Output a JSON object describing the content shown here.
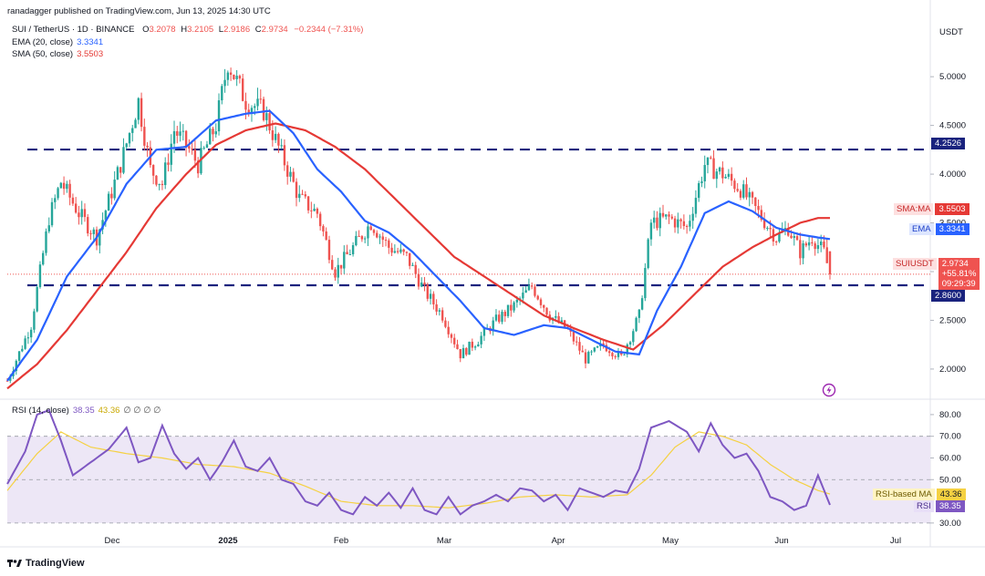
{
  "header": {
    "publisher": "ranadagger published on TradingView.com, Jun 13, 2025 14:30 UTC"
  },
  "legend": {
    "symbol": "SUI / TetherUS · 1D · BINANCE",
    "open_label": "O",
    "open": "3.2078",
    "high_label": "H",
    "high": "3.2105",
    "low_label": "L",
    "low": "2.9186",
    "close_label": "C",
    "close": "2.9734",
    "change": "−0.2344 (−7.31%)",
    "ema_label": "EMA (20, close)",
    "ema_value": "3.3341",
    "sma_label": "SMA (50, close)",
    "sma_value": "3.5503",
    "rsi_label": "RSI (14, close)",
    "rsi_value": "38.35",
    "rsi_ma_value": "43.36",
    "rsi_extra": "∅ ∅ ∅ ∅"
  },
  "currency": "USDT",
  "price_badges": {
    "level_high": "4.2526",
    "sma": {
      "label": "SMA:MA",
      "value": "3.5503"
    },
    "ema": {
      "label": "EMA",
      "value": "3.3341"
    },
    "last": {
      "label": "SUIUSDT",
      "value": "2.9734",
      "change": "+55.81%",
      "countdown": "09:29:39"
    },
    "level_low": "2.8600"
  },
  "rsi_badges": {
    "ma": {
      "label": "RSI-based MA",
      "value": "43.36"
    },
    "rsi": {
      "label": "RSI",
      "value": "38.35"
    }
  },
  "footer": {
    "brand": "TradingView"
  },
  "colors": {
    "up": "#26a69a",
    "down": "#ef5350",
    "ema": "#2962ff",
    "sma": "#e53935",
    "level": "#1a237e",
    "rsi": "#7e57c2",
    "rsi_ma": "#f5d142",
    "rsi_band": "#ede7f6"
  },
  "chart_data": [
    {
      "type": "candlestick",
      "title": "SUI / TetherUS · 1D · BINANCE",
      "y_axis_unit": "USDT",
      "yticks": [
        "2.0000",
        "2.5000",
        "3.0000",
        "3.5000",
        "4.0000",
        "4.5000",
        "5.0000"
      ],
      "ylim": [
        1.7,
        5.6
      ],
      "x_tick_labels": [
        "Dec",
        "2025",
        "Feb",
        "Mar",
        "Apr",
        "May",
        "Jun",
        "Jul"
      ],
      "horizontal_levels": [
        4.2526,
        2.86
      ],
      "price_control_points": [
        [
          0,
          1.88
        ],
        [
          8,
          2.45
        ],
        [
          14,
          3.55
        ],
        [
          18,
          3.92
        ],
        [
          24,
          3.6
        ],
        [
          30,
          3.35
        ],
        [
          38,
          4.1
        ],
        [
          44,
          4.75
        ],
        [
          48,
          4.05
        ],
        [
          52,
          3.9
        ],
        [
          56,
          4.45
        ],
        [
          60,
          4.3
        ],
        [
          64,
          4.1
        ],
        [
          70,
          4.5
        ],
        [
          74,
          5.15
        ],
        [
          80,
          4.75
        ],
        [
          86,
          4.65
        ],
        [
          92,
          4.2
        ],
        [
          98,
          3.75
        ],
        [
          104,
          3.6
        ],
        [
          110,
          3.0
        ],
        [
          116,
          3.25
        ],
        [
          122,
          3.5
        ],
        [
          128,
          3.25
        ],
        [
          134,
          3.15
        ],
        [
          140,
          2.8
        ],
        [
          146,
          2.55
        ],
        [
          152,
          2.15
        ],
        [
          158,
          2.3
        ],
        [
          164,
          2.5
        ],
        [
          170,
          2.65
        ],
        [
          176,
          2.85
        ],
        [
          182,
          2.55
        ],
        [
          188,
          2.4
        ],
        [
          194,
          2.1
        ],
        [
          200,
          2.25
        ],
        [
          206,
          2.12
        ],
        [
          212,
          2.55
        ],
        [
          216,
          3.5
        ],
        [
          222,
          3.55
        ],
        [
          228,
          3.45
        ],
        [
          234,
          4.1
        ],
        [
          240,
          4.0
        ],
        [
          246,
          3.85
        ],
        [
          252,
          3.6
        ],
        [
          258,
          3.35
        ],
        [
          262,
          3.45
        ],
        [
          266,
          3.2
        ],
        [
          270,
          3.35
        ],
        [
          274,
          3.2
        ],
        [
          276,
          2.97
        ]
      ],
      "ema20_control_points": [
        [
          0,
          1.88
        ],
        [
          10,
          2.3
        ],
        [
          20,
          2.95
        ],
        [
          30,
          3.35
        ],
        [
          40,
          3.9
        ],
        [
          50,
          4.25
        ],
        [
          60,
          4.28
        ],
        [
          70,
          4.55
        ],
        [
          80,
          4.62
        ],
        [
          88,
          4.65
        ],
        [
          96,
          4.42
        ],
        [
          104,
          4.05
        ],
        [
          112,
          3.82
        ],
        [
          120,
          3.52
        ],
        [
          128,
          3.4
        ],
        [
          136,
          3.2
        ],
        [
          144,
          2.95
        ],
        [
          152,
          2.7
        ],
        [
          160,
          2.42
        ],
        [
          170,
          2.35
        ],
        [
          180,
          2.45
        ],
        [
          188,
          2.42
        ],
        [
          196,
          2.3
        ],
        [
          204,
          2.18
        ],
        [
          212,
          2.15
        ],
        [
          218,
          2.6
        ],
        [
          226,
          3.05
        ],
        [
          234,
          3.6
        ],
        [
          242,
          3.72
        ],
        [
          250,
          3.62
        ],
        [
          258,
          3.45
        ],
        [
          266,
          3.38
        ],
        [
          272,
          3.35
        ],
        [
          276,
          3.3341
        ]
      ],
      "sma50_control_points": [
        [
          0,
          1.8
        ],
        [
          10,
          2.05
        ],
        [
          20,
          2.4
        ],
        [
          30,
          2.8
        ],
        [
          40,
          3.2
        ],
        [
          50,
          3.65
        ],
        [
          60,
          4.0
        ],
        [
          70,
          4.3
        ],
        [
          80,
          4.45
        ],
        [
          90,
          4.52
        ],
        [
          100,
          4.45
        ],
        [
          110,
          4.28
        ],
        [
          120,
          4.05
        ],
        [
          130,
          3.75
        ],
        [
          140,
          3.45
        ],
        [
          150,
          3.15
        ],
        [
          160,
          2.95
        ],
        [
          170,
          2.75
        ],
        [
          180,
          2.55
        ],
        [
          190,
          2.42
        ],
        [
          200,
          2.3
        ],
        [
          210,
          2.2
        ],
        [
          220,
          2.45
        ],
        [
          230,
          2.75
        ],
        [
          240,
          3.05
        ],
        [
          250,
          3.25
        ],
        [
          258,
          3.38
        ],
        [
          266,
          3.5
        ],
        [
          272,
          3.55
        ],
        [
          276,
          3.5503
        ]
      ]
    },
    {
      "type": "line",
      "title": "RSI (14, close)",
      "yticks": [
        "30.00",
        "40.00",
        "50.00",
        "60.00",
        "70.00",
        "80.00"
      ],
      "ylim": [
        27,
        85
      ],
      "bands": {
        "upper": 70,
        "middle": 50,
        "lower": 30
      },
      "series": [
        {
          "name": "RSI",
          "control_points": [
            [
              0,
              48
            ],
            [
              6,
              63
            ],
            [
              10,
              80
            ],
            [
              14,
              82
            ],
            [
              18,
              68
            ],
            [
              22,
              52
            ],
            [
              28,
              58
            ],
            [
              34,
              64
            ],
            [
              40,
              74
            ],
            [
              44,
              58
            ],
            [
              48,
              60
            ],
            [
              52,
              75
            ],
            [
              56,
              62
            ],
            [
              60,
              55
            ],
            [
              64,
              60
            ],
            [
              68,
              50
            ],
            [
              72,
              58
            ],
            [
              76,
              68
            ],
            [
              80,
              56
            ],
            [
              84,
              54
            ],
            [
              88,
              60
            ],
            [
              92,
              50
            ],
            [
              96,
              48
            ],
            [
              100,
              40
            ],
            [
              104,
              38
            ],
            [
              108,
              44
            ],
            [
              112,
              36
            ],
            [
              116,
              34
            ],
            [
              120,
              42
            ],
            [
              124,
              38
            ],
            [
              128,
              44
            ],
            [
              132,
              37
            ],
            [
              136,
              46
            ],
            [
              140,
              36
            ],
            [
              144,
              34
            ],
            [
              148,
              42
            ],
            [
              152,
              34
            ],
            [
              156,
              38
            ],
            [
              160,
              40
            ],
            [
              164,
              43
            ],
            [
              168,
              40
            ],
            [
              172,
              46
            ],
            [
              176,
              45
            ],
            [
              180,
              40
            ],
            [
              184,
              43
            ],
            [
              188,
              36
            ],
            [
              192,
              46
            ],
            [
              196,
              44
            ],
            [
              200,
              42
            ],
            [
              204,
              45
            ],
            [
              208,
              44
            ],
            [
              212,
              55
            ],
            [
              216,
              74
            ],
            [
              222,
              77
            ],
            [
              228,
              72
            ],
            [
              232,
              63
            ],
            [
              236,
              76
            ],
            [
              240,
              66
            ],
            [
              244,
              60
            ],
            [
              248,
              62
            ],
            [
              252,
              54
            ],
            [
              256,
              42
            ],
            [
              260,
              40
            ],
            [
              264,
              36
            ],
            [
              268,
              38
            ],
            [
              272,
              52
            ],
            [
              276,
              38.35
            ]
          ]
        },
        {
          "name": "RSI-based MA",
          "control_points": [
            [
              0,
              45
            ],
            [
              10,
              62
            ],
            [
              18,
              72
            ],
            [
              28,
              65
            ],
            [
              40,
              62
            ],
            [
              52,
              60
            ],
            [
              64,
              57
            ],
            [
              76,
              56
            ],
            [
              88,
              53
            ],
            [
              100,
              47
            ],
            [
              112,
              40
            ],
            [
              124,
              38
            ],
            [
              136,
              38
            ],
            [
              148,
              37
            ],
            [
              160,
              39
            ],
            [
              172,
              42
            ],
            [
              184,
              43
            ],
            [
              196,
              42
            ],
            [
              208,
              43
            ],
            [
              216,
              52
            ],
            [
              224,
              65
            ],
            [
              232,
              72
            ],
            [
              240,
              70
            ],
            [
              248,
              66
            ],
            [
              256,
              57
            ],
            [
              264,
              50
            ],
            [
              272,
              45
            ],
            [
              276,
              43.36
            ]
          ]
        }
      ]
    }
  ]
}
